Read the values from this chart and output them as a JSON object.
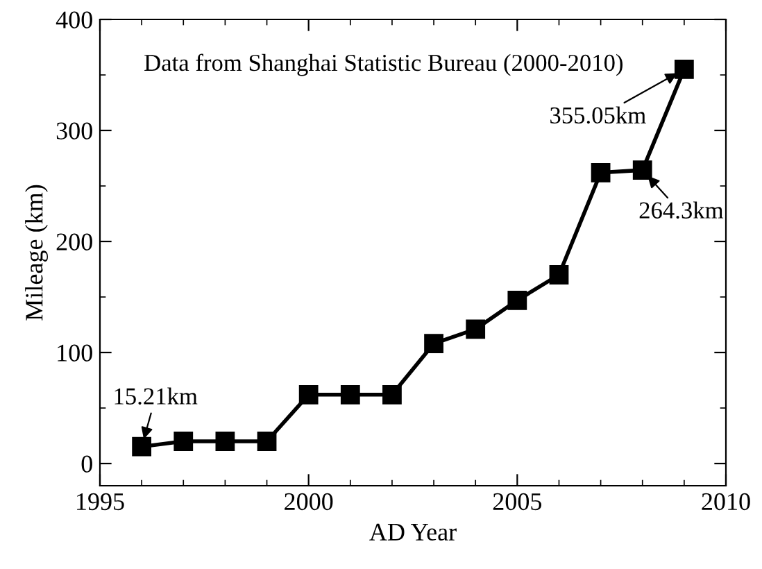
{
  "chart_data": {
    "type": "line",
    "xlabel": "AD Year",
    "ylabel": "Mileage (km)",
    "x": [
      1996,
      1997,
      1998,
      1999,
      2000,
      2001,
      2002,
      2003,
      2004,
      2005,
      2006,
      2007,
      2008,
      2009
    ],
    "series": [
      {
        "color": "#000000",
        "values": [
          15.21,
          20,
          20,
          20,
          62,
          62,
          62,
          108,
          121,
          147,
          170,
          262,
          264.3,
          355.05
        ]
      }
    ],
    "marker": "square",
    "line_style": "solid",
    "grid": false,
    "legend": false,
    "xlim": [
      1995,
      2010
    ],
    "xticks": [
      1995,
      2000,
      2005,
      2010
    ],
    "ylim": [
      -20,
      400
    ],
    "yticks": [
      0,
      100,
      200,
      300,
      400
    ],
    "annotations": [
      "Data from Shanghai Statistic Bureau (2000-2010)",
      {
        "text": "15.21km",
        "x": 1996,
        "y": 15.21
      },
      {
        "text": "264.3km",
        "x": 2008,
        "y": 264.3
      },
      {
        "text": "355.05km",
        "x": 2009,
        "y": 355.05
      }
    ]
  }
}
